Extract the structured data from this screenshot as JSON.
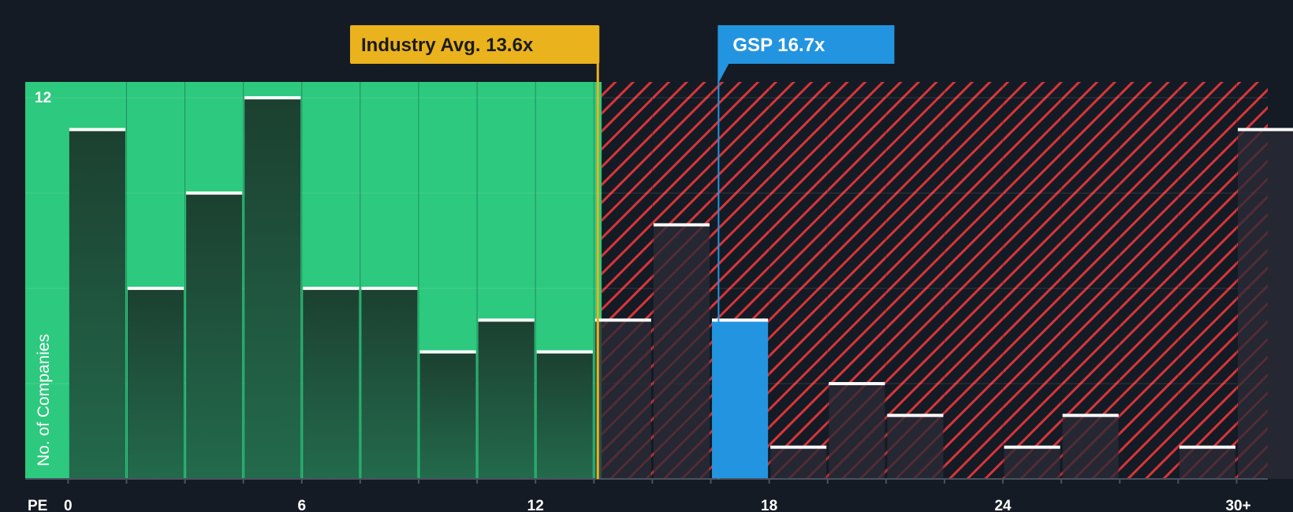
{
  "chart_data": {
    "type": "bar",
    "title": "",
    "xlabel": "PE",
    "ylabel": "No. of Companies",
    "x_tick_labels": [
      "0",
      "6",
      "12",
      "18",
      "24",
      "30+"
    ],
    "x_tick_values": [
      0,
      6,
      12,
      18,
      24,
      30
    ],
    "y_tick_labels": [
      "12"
    ],
    "ylim": [
      0,
      12.5
    ],
    "xlim": [
      -1.1,
      30.8
    ],
    "bin_width": 1.5,
    "bin_starts": [
      0,
      1.5,
      3,
      4.5,
      6,
      7.5,
      9,
      10.5,
      12,
      13.5,
      15,
      16.5,
      18,
      19.5,
      21,
      22.5,
      24,
      25.5,
      27,
      28.5,
      30
    ],
    "values": [
      11,
      6,
      9,
      12,
      6,
      6,
      4,
      5,
      4,
      5,
      8,
      5,
      1,
      3,
      2,
      0,
      1,
      2,
      0,
      1,
      11
    ],
    "highlight_bin_index": 11,
    "fair_zone_max": 13,
    "industry_avg": {
      "label": "Industry Avg. 13.6x",
      "value": 13.6
    },
    "company": {
      "label": "GSP 16.7x",
      "value": 16.7
    },
    "colors": {
      "background": "#151b24",
      "fair_zone": "#2dc97e",
      "expensive_stripe": "#e0393e",
      "bar_in_fair": "#1f4a3a",
      "bar_in_expensive": "#2a2a36",
      "bar_highlight": "#2394df",
      "bar_cap": "#ffffff",
      "industry_callout": "#eab31d",
      "company_callout": "#2394df"
    }
  }
}
